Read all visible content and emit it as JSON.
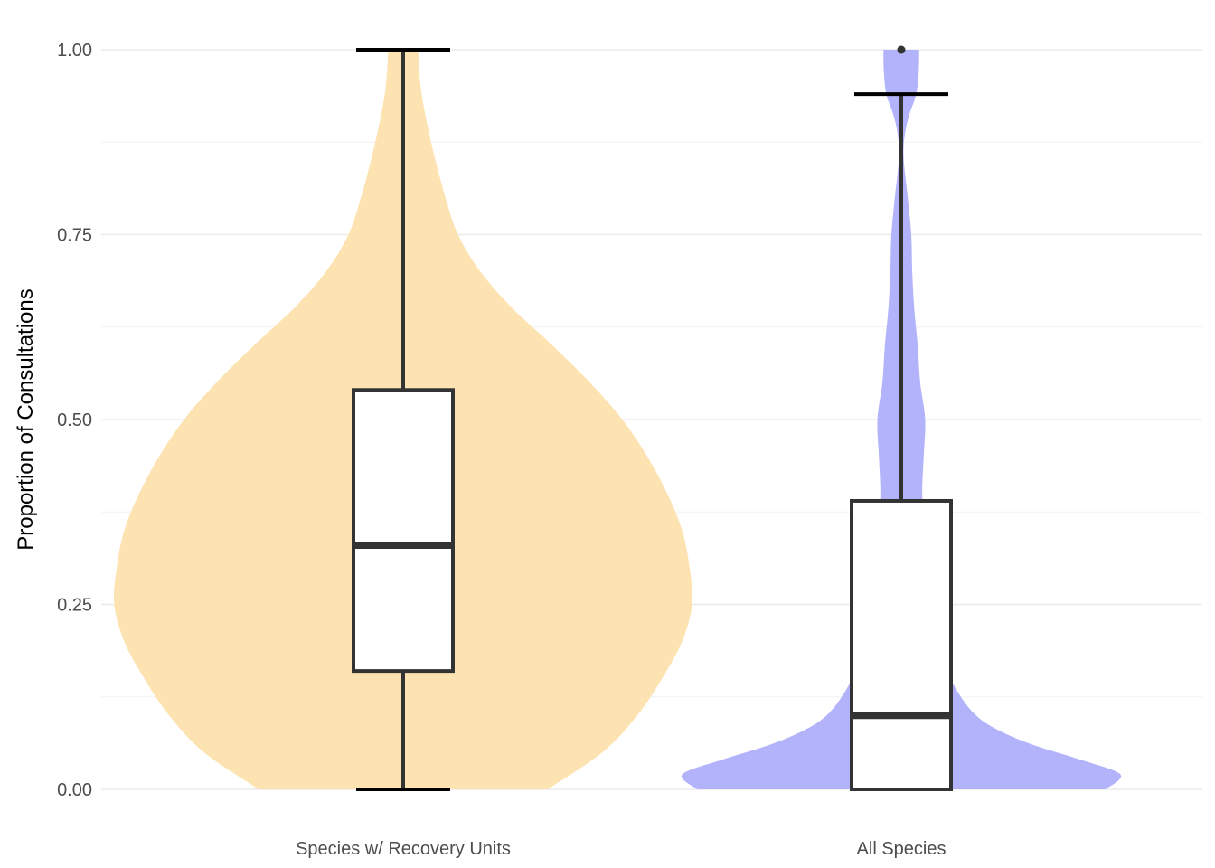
{
  "chart_data": {
    "type": "violin",
    "title": "",
    "xlabel": "",
    "ylabel": "Proportion of Consultations",
    "ylim": [
      0,
      1
    ],
    "yticks": [
      0,
      0.25,
      0.5,
      0.75,
      1
    ],
    "ytick_labels": [
      "0.00",
      "0.25",
      "0.50",
      "0.75",
      "1.00"
    ],
    "grid": "horizontal major and minor",
    "legend": "none",
    "categories": [
      "Species w/ Recovery Units",
      "All Species"
    ],
    "series": [
      {
        "fill_color": "#fde3b2",
        "boxplot": {
          "min": 0.0,
          "q1": 0.16,
          "median": 0.33,
          "q3": 0.54,
          "max": 1.0,
          "outliers": []
        },
        "density": [
          [
            0.0,
            0.29
          ],
          [
            0.05,
            0.4
          ],
          [
            0.1,
            0.47
          ],
          [
            0.15,
            0.52
          ],
          [
            0.2,
            0.56
          ],
          [
            0.25,
            0.58
          ],
          [
            0.3,
            0.575
          ],
          [
            0.35,
            0.56
          ],
          [
            0.4,
            0.53
          ],
          [
            0.45,
            0.49
          ],
          [
            0.5,
            0.44
          ],
          [
            0.55,
            0.375
          ],
          [
            0.6,
            0.3
          ],
          [
            0.65,
            0.22
          ],
          [
            0.7,
            0.155
          ],
          [
            0.75,
            0.11
          ],
          [
            0.8,
            0.085
          ],
          [
            0.85,
            0.065
          ],
          [
            0.9,
            0.048
          ],
          [
            0.95,
            0.035
          ],
          [
            1.0,
            0.03
          ]
        ]
      },
      {
        "fill_color": "#b3b3fc",
        "boxplot": {
          "min": 0.0,
          "q1": 0.0,
          "median": 0.1,
          "q3": 0.39,
          "max": 0.94,
          "outliers": [
            1.0
          ]
        },
        "density": [
          [
            0.0,
            0.41
          ],
          [
            0.02,
            0.44
          ],
          [
            0.04,
            0.36
          ],
          [
            0.06,
            0.265
          ],
          [
            0.08,
            0.195
          ],
          [
            0.1,
            0.15
          ],
          [
            0.13,
            0.115
          ],
          [
            0.17,
            0.085
          ],
          [
            0.22,
            0.068
          ],
          [
            0.26,
            0.062
          ],
          [
            0.3,
            0.055
          ],
          [
            0.35,
            0.046
          ],
          [
            0.4,
            0.042
          ],
          [
            0.45,
            0.045
          ],
          [
            0.5,
            0.048
          ],
          [
            0.55,
            0.038
          ],
          [
            0.6,
            0.033
          ],
          [
            0.65,
            0.026
          ],
          [
            0.7,
            0.022
          ],
          [
            0.75,
            0.02
          ],
          [
            0.8,
            0.013
          ],
          [
            0.85,
            0.005
          ],
          [
            0.88,
            0.006
          ],
          [
            0.91,
            0.015
          ],
          [
            0.94,
            0.03
          ],
          [
            0.97,
            0.035
          ],
          [
            1.0,
            0.036
          ]
        ]
      }
    ]
  }
}
